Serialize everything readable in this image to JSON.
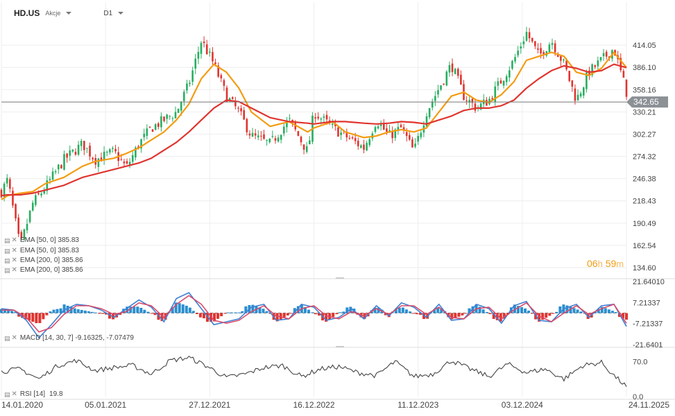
{
  "header": {
    "symbol": "HD.US",
    "instrument_type": "Akcje",
    "timeframe": "D1"
  },
  "colors": {
    "ema50": "#f39c12",
    "ema200": "#e0342f",
    "up": "#27ae60",
    "down": "#e0342f",
    "macd_line": "#3f7fd3",
    "signal_line": "#d94a6a",
    "hist_pos": "#2a8fd0",
    "hist_neg": "#e0342f",
    "rsi_line": "#444444",
    "current_price_bg": "#8c9196"
  },
  "legends": {
    "price": [
      {
        "label": "EMA [50, 0] 385.83"
      },
      {
        "label": "EMA [50, 0] 385.83"
      },
      {
        "label": "EMA [200, 0] 385.86"
      },
      {
        "label": "EMA [200, 0] 385.86"
      }
    ],
    "macd": "MACD [14, 30, 7] -9.16325, -7.07479",
    "rsi_label": "RSI [14]",
    "rsi_value": "19.8"
  },
  "current_price": "342.65",
  "timer": {
    "hours": "06",
    "h_unit": "h",
    "minutes": "59",
    "m_unit": "m"
  },
  "chart_data": [
    {
      "type": "candlestick",
      "title": "HD.US D1",
      "x_labels": [
        "14.01.2020",
        "05.01.2021",
        "27.12.2021",
        "16.12.2022",
        "11.12.2023",
        "03.12.2024",
        "24.11.2025"
      ],
      "y_ticks": [
        "414.05",
        "386.10",
        "358.16",
        "330.21",
        "302.27",
        "274.32",
        "246.38",
        "218.43",
        "190.49",
        "162.54",
        "134.60"
      ],
      "ylim": [
        134.6,
        442
      ],
      "close_series": {
        "x": [
          0,
          1,
          3,
          5,
          7,
          10,
          13,
          15,
          18,
          20,
          22,
          24,
          26,
          28,
          30,
          32,
          34,
          36,
          38,
          40,
          43,
          46,
          49,
          50,
          53,
          55,
          58,
          60,
          62,
          64,
          66,
          68,
          70,
          72,
          74,
          76,
          78,
          80,
          82,
          84,
          86,
          88,
          90,
          92,
          94,
          96,
          98,
          100
        ],
        "y": [
          230,
          245,
          160,
          215,
          235,
          270,
          290,
          270,
          280,
          260,
          290,
          310,
          320,
          330,
          365,
          420,
          390,
          350,
          330,
          300,
          290,
          320,
          280,
          330,
          310,
          300,
          285,
          320,
          300,
          310,
          280,
          330,
          360,
          390,
          350,
          335,
          345,
          370,
          395,
          430,
          400,
          420,
          390,
          345,
          380,
          395,
          410,
          355
        ]
      },
      "series": [
        {
          "name": "EMA [50, 0]",
          "values": [
            220,
            225,
            228,
            230,
            240,
            248,
            262,
            268,
            272,
            278,
            285,
            295,
            305,
            320,
            340,
            372,
            390,
            380,
            360,
            330,
            312,
            318,
            305,
            310,
            318,
            305,
            298,
            300,
            305,
            308,
            305,
            310,
            330,
            350,
            355,
            345,
            342,
            352,
            368,
            395,
            400,
            405,
            400,
            380,
            376,
            385,
            405,
            385.83
          ]
        },
        {
          "name": "EMA [200, 0]",
          "values": [
            225,
            226,
            226,
            228,
            232,
            238,
            248,
            252,
            258,
            262,
            266,
            272,
            282,
            292,
            305,
            320,
            335,
            345,
            343,
            335,
            323,
            318,
            316,
            315,
            318,
            318,
            316,
            315,
            316,
            318,
            317,
            315,
            320,
            325,
            332,
            335,
            335,
            338,
            345,
            360,
            372,
            382,
            388,
            385,
            380,
            382,
            390,
            385.86
          ]
        }
      ]
    },
    {
      "type": "line",
      "title": "MACD [14, 30, 7]",
      "y_ticks": [
        "21.64010",
        "7.21337",
        "-7.21337",
        "-21.6401"
      ],
      "ylim": [
        -21.6401,
        21.6401
      ],
      "x": [
        0,
        2,
        4,
        6,
        8,
        10,
        12,
        14,
        16,
        18,
        20,
        22,
        24,
        26,
        28,
        30,
        32,
        34,
        36,
        38,
        40,
        42,
        44,
        46,
        48,
        50,
        52,
        54,
        56,
        58,
        60,
        62,
        64,
        66,
        68,
        70,
        72,
        74,
        76,
        78,
        80,
        82,
        84,
        86,
        88,
        90,
        92,
        94,
        96,
        98,
        100
      ],
      "series": [
        {
          "name": "MACD",
          "values": [
            3,
            2,
            -5,
            -17,
            -8,
            2,
            6,
            5,
            2,
            -3,
            3,
            9,
            4,
            -6,
            10,
            14,
            3,
            -8,
            -6,
            -4,
            4,
            6,
            -5,
            -4,
            6,
            4,
            -5,
            -3,
            3,
            -4,
            5,
            -2,
            7,
            4,
            -3,
            6,
            -5,
            -4,
            6,
            3,
            -7,
            5,
            8,
            -5,
            -6,
            3,
            6,
            -3,
            5,
            6,
            -9.16
          ]
        },
        {
          "name": "Signal",
          "values": [
            2,
            2,
            -3,
            -13,
            -10,
            -1,
            5,
            5,
            3,
            -1,
            1,
            7,
            5,
            -3,
            6,
            12,
            6,
            -5,
            -7,
            -5,
            1,
            5,
            -2,
            -4,
            3,
            5,
            -2,
            -4,
            1,
            -2,
            3,
            -1,
            5,
            5,
            -1,
            4,
            -3,
            -4,
            3,
            4,
            -4,
            2,
            7,
            -2,
            -6,
            0,
            5,
            -1,
            3,
            6,
            -7.07
          ]
        }
      ]
    },
    {
      "type": "line",
      "title": "RSI [14]",
      "y_ticks": [
        "70.0",
        "0.0"
      ],
      "ylim": [
        0,
        90
      ],
      "x": [
        0,
        3,
        6,
        9,
        12,
        15,
        18,
        21,
        24,
        27,
        30,
        33,
        36,
        39,
        42,
        45,
        48,
        51,
        54,
        57,
        60,
        63,
        66,
        69,
        72,
        75,
        78,
        81,
        84,
        87,
        90,
        93,
        96,
        98,
        100
      ],
      "series": [
        {
          "name": "RSI",
          "values": [
            50,
            55,
            35,
            62,
            72,
            52,
            58,
            62,
            45,
            72,
            78,
            60,
            38,
            45,
            58,
            62,
            40,
            55,
            60,
            48,
            42,
            70,
            40,
            45,
            72,
            55,
            40,
            65,
            48,
            55,
            35,
            62,
            68,
            42,
            19.8
          ]
        }
      ]
    }
  ]
}
